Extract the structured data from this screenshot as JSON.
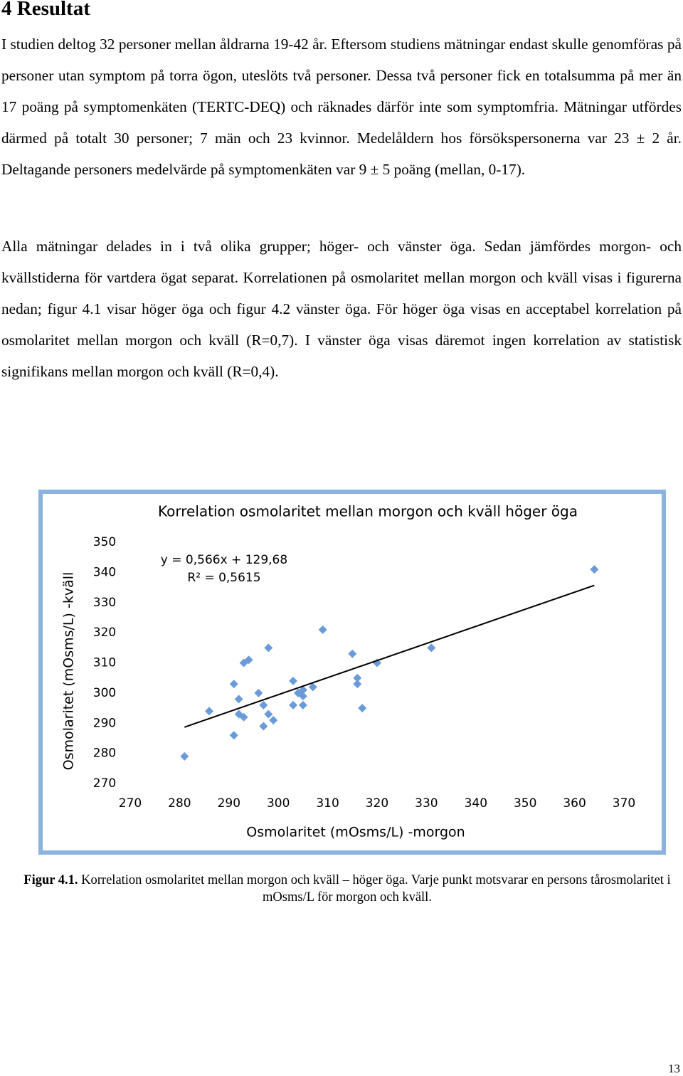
{
  "heading": "4 Resultat",
  "paragraphs": [
    "I studien deltog 32 personer mellan åldrarna 19-42 år. Eftersom studiens mätningar endast skulle genomföras på personer utan symptom på torra ögon, uteslöts två personer. Dessa två personer fick en totalsumma på mer än 17 poäng på symptomenkäten (TERTC-DEQ) och räknades därför inte som symptomfria. Mätningar utfördes därmed på totalt 30 personer; 7 män och 23 kvinnor. Medelåldern hos försökspersonerna var 23 ± 2 år. Deltagande personers medelvärde på symptomenkäten var 9 ± 5 poäng (mellan, 0-17).",
    "Alla mätningar delades in i två olika grupper; höger- och vänster öga. Sedan jämfördes morgon- och kvällstiderna för vartdera ögat separat. Korrelationen på osmolaritet mellan morgon och kväll visas i figurerna nedan; figur 4.1 visar höger öga och figur 4.2 vänster öga. För höger öga visas en acceptabel korrelation på osmolaritet mellan morgon och kväll (R=0,7). I vänster öga visas däremot ingen korrelation av statistisk signifikans mellan morgon och kväll (R=0,4)."
  ],
  "chart_data": {
    "type": "scatter",
    "title": "Korrelation osmolaritet mellan morgon och kväll höger öga",
    "xlabel": "Osmolaritet (mOsms/L) -morgon",
    "ylabel": "Osmolaritet (mOsms/L) -kväll",
    "x": [
      281,
      286,
      291,
      291,
      292,
      292,
      293,
      293,
      294,
      296,
      297,
      297,
      298,
      298,
      299,
      303,
      303,
      304,
      305,
      305,
      305,
      307,
      309,
      315,
      316,
      316,
      317,
      320,
      331,
      364
    ],
    "values": [
      279,
      294,
      303,
      286,
      298,
      293,
      292,
      310,
      311,
      300,
      296,
      289,
      293,
      315,
      291,
      304,
      296,
      300,
      301,
      299,
      296,
      302,
      321,
      313,
      305,
      303,
      295,
      310,
      315,
      341
    ],
    "color": "#6a9bd8",
    "xlim": [
      270,
      370
    ],
    "ylim": [
      270,
      350
    ],
    "xticks": [
      270,
      280,
      290,
      300,
      310,
      320,
      330,
      340,
      350,
      360,
      370
    ],
    "yticks": [
      270,
      280,
      290,
      300,
      310,
      320,
      330,
      340,
      350
    ],
    "annotations": [
      "y = 0,566x + 129,68",
      "R² = 0,5615"
    ],
    "trendline": {
      "x": [
        281,
        364
      ],
      "values": [
        288.7,
        335.7
      ],
      "color": "#000000"
    }
  },
  "caption": {
    "label": "Figur 4.1.",
    "text": "Korrelation osmolaritet mellan morgon och kväll – höger öga. Varje punkt motsvarar en persons tårosmolaritet i mOsms/L för morgon och kväll."
  },
  "page_number": "13"
}
